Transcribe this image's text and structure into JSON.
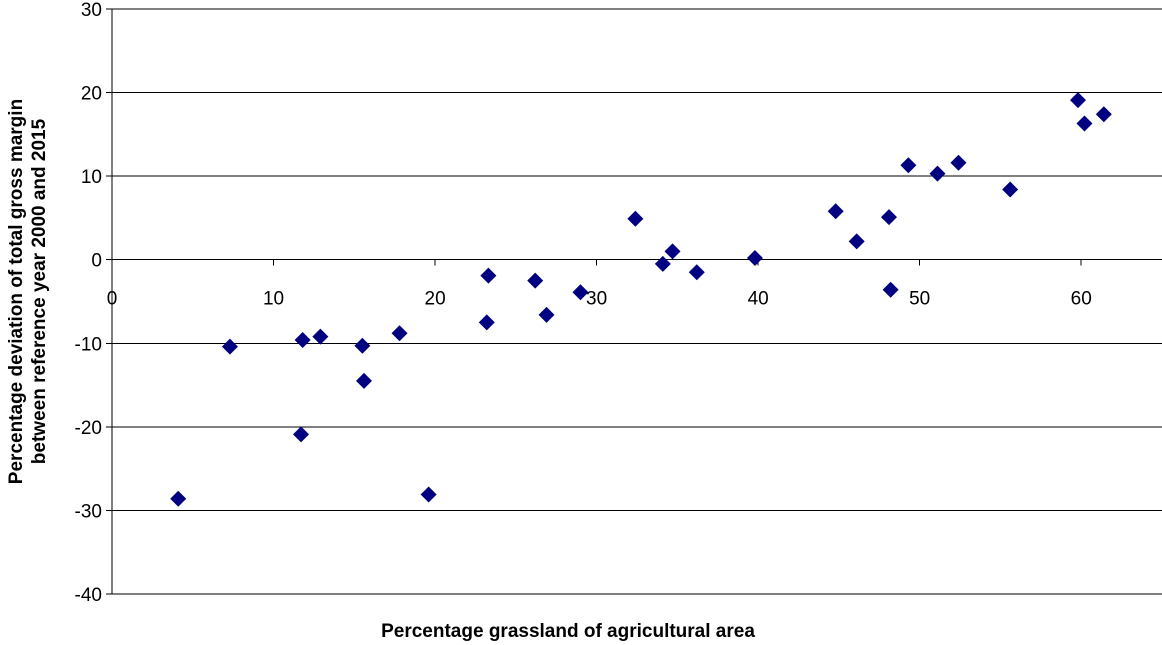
{
  "chart_data": {
    "type": "scatter",
    "title": "",
    "xlabel": "Percentage grassland of agricultural area",
    "ylabel_lines": [
      "Percentage deviation of total gross margin",
      "between reference year 2000 and 2015"
    ],
    "xlim": [
      0,
      65
    ],
    "ylim": [
      -40,
      30
    ],
    "xticks": [
      0,
      10,
      20,
      30,
      40,
      50,
      60
    ],
    "yticks": [
      30,
      20,
      10,
      0,
      -10,
      -20,
      -30,
      -40
    ],
    "xtick_labels": [
      "0",
      "10",
      "20",
      "30",
      "40",
      "50",
      "60"
    ],
    "ytick_labels": [
      "30",
      "20",
      "10",
      "0",
      "-10",
      "-20",
      "-30",
      "-40"
    ],
    "grid": "horizontal",
    "legend": "none",
    "marker": "diamond",
    "marker_color": "#000080",
    "series": [
      {
        "x": [
          4.1,
          7.3,
          11.7,
          11.8,
          12.9,
          15.5,
          15.6,
          17.8,
          19.6,
          23.2,
          23.3,
          26.2,
          26.9,
          29.0,
          32.4,
          34.1,
          34.7,
          36.2,
          39.8,
          44.8,
          46.1,
          48.1,
          48.2,
          49.3,
          51.1,
          52.4,
          55.6,
          59.8,
          60.2,
          61.4
        ],
        "y": [
          -28.6,
          -10.4,
          -20.9,
          -9.6,
          -9.2,
          -10.3,
          -14.5,
          -8.8,
          -28.1,
          -7.5,
          -1.9,
          -2.5,
          -6.6,
          -3.9,
          4.9,
          -0.5,
          1.0,
          -1.5,
          0.2,
          5.8,
          2.2,
          5.1,
          -3.6,
          11.3,
          10.3,
          11.6,
          8.4,
          19.1,
          16.3,
          17.4
        ]
      }
    ]
  }
}
